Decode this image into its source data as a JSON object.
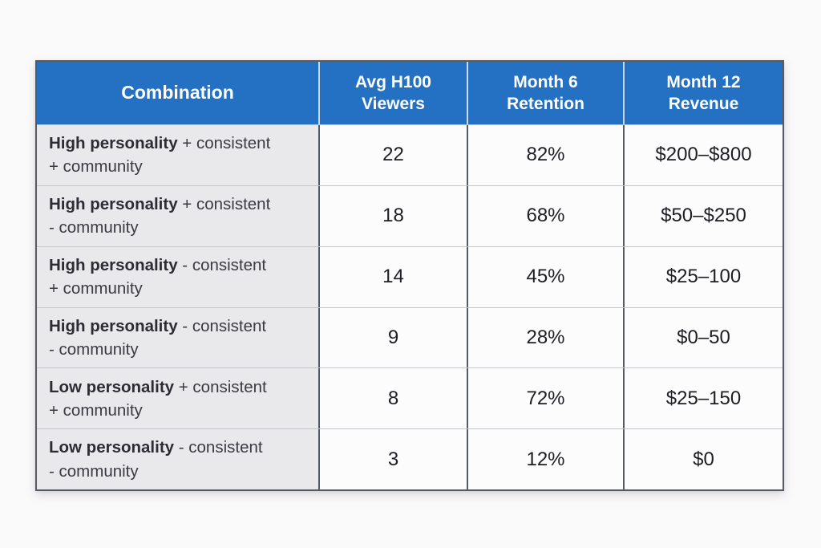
{
  "page": {
    "background_color": "#fbfafb"
  },
  "table": {
    "accent_color": "#2471c4",
    "header_text_color": "#ffffff",
    "label_column_bg": "#e9e9ec",
    "value_cell_bg": "#fcfcfd",
    "border_color": "#565b63",
    "header": {
      "combination": "Combination",
      "viewers_line1": "Avg H100",
      "viewers_line2": "Viewers",
      "retention_line1": "Month 6",
      "retention_line2": "Retention",
      "revenue_line1": "Month 12",
      "revenue_line2": "Revenue"
    },
    "rows": [
      {
        "bold": "High personality",
        "rest": " + consistent",
        "line2": "+ community",
        "viewers": "22",
        "retention": "82%",
        "revenue": "$200–$800"
      },
      {
        "bold": "High personality",
        "rest": " + consistent",
        "line2": "- community",
        "viewers": "18",
        "retention": "68%",
        "revenue": "$50–$250"
      },
      {
        "bold": "High personality",
        "rest": " - consistent",
        "line2": "+ community",
        "viewers": "14",
        "retention": "45%",
        "revenue": "$25–100"
      },
      {
        "bold": "High personality",
        "rest": " - consistent",
        "line2": "- community",
        "viewers": "9",
        "retention": "28%",
        "revenue": "$0–50"
      },
      {
        "bold": "Low personality",
        "rest": " + consistent",
        "line2": "+ community",
        "viewers": "8",
        "retention": "72%",
        "revenue": "$25–150"
      },
      {
        "bold": "Low personality",
        "rest": " - consistent",
        "line2": "- community",
        "viewers": "3",
        "retention": "12%",
        "revenue": "$0"
      }
    ]
  },
  "chart_data": {
    "type": "table",
    "columns": [
      "Combination",
      "Avg H100 Viewers",
      "Month 6 Retention",
      "Month 12 Revenue"
    ],
    "rows": [
      [
        "High personality + consistent + community",
        "22",
        "82%",
        "$200–$800"
      ],
      [
        "High personality + consistent - community",
        "18",
        "68%",
        "$50–$250"
      ],
      [
        "High personality - consistent + community",
        "14",
        "45%",
        "$25–100"
      ],
      [
        "High personality - consistent - community",
        "9",
        "28%",
        "$0–50"
      ],
      [
        "Low personality + consistent + community",
        "8",
        "72%",
        "$25–150"
      ],
      [
        "Low personality - consistent - community",
        "3",
        "12%",
        "$0"
      ]
    ]
  }
}
